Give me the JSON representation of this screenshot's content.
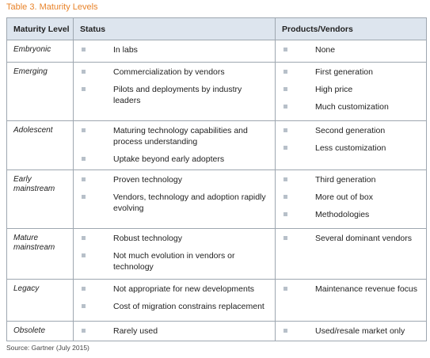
{
  "title": "Table 3. Maturity Levels",
  "table": {
    "headers": [
      "Maturity Level",
      "Status",
      "Products/Vendors"
    ],
    "rows": [
      {
        "level": "Embryonic",
        "status": [
          "In labs"
        ],
        "products": [
          "None"
        ]
      },
      {
        "level": "Emerging",
        "status": [
          "Commercialization by vendors",
          "Pilots and deployments by industry leaders"
        ],
        "products": [
          "First generation",
          "High price",
          "Much customization"
        ]
      },
      {
        "level": "Adolescent",
        "status": [
          "Maturing technology capabilities and process understanding",
          "Uptake beyond early adopters"
        ],
        "products": [
          "Second generation",
          "Less customization"
        ]
      },
      {
        "level": "Early mainstream",
        "status": [
          "Proven technology",
          "Vendors, technology and adoption rapidly evolving"
        ],
        "products": [
          "Third generation",
          "More out of box",
          "Methodologies"
        ]
      },
      {
        "level": "Mature mainstream",
        "status": [
          "Robust technology",
          "Not much evolution in vendors or technology"
        ],
        "products": [
          "Several dominant vendors"
        ]
      },
      {
        "level": "Legacy",
        "status": [
          "Not appropriate for new developments",
          "Cost of migration constrains replacement"
        ],
        "products": [
          "Maintenance revenue focus"
        ]
      },
      {
        "level": "Obsolete",
        "status": [
          "Rarely used"
        ],
        "products": [
          "Used/resale market only"
        ]
      }
    ]
  },
  "source": "Source: Gartner (July 2015)"
}
